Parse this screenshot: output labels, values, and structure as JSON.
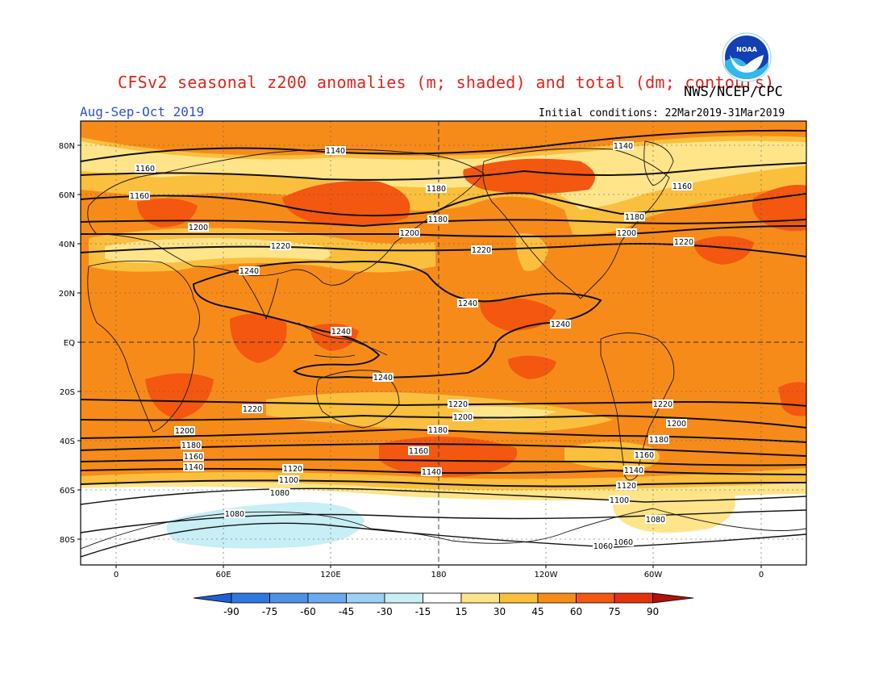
{
  "header": {
    "title": "CFSv2 seasonal z200 anomalies (m; shaded) and total (dm; contours)",
    "agency": "NWS/NCEP/CPC",
    "season": "Aug-Sep-Oct 2019",
    "initial_conditions": "Initial conditions: 22Mar2019-31Mar2019",
    "logo_text": "NOAA"
  },
  "map": {
    "lat_ticks": [
      "80N",
      "60N",
      "40N",
      "20N",
      "EQ",
      "20S",
      "40S",
      "60S",
      "80S"
    ],
    "lon_ticks": [
      "0",
      "60E",
      "120E",
      "180",
      "120W",
      "60W",
      "0"
    ],
    "contour_labels": [
      "1140",
      "1140",
      "1160",
      "1160",
      "1160",
      "1180",
      "1180",
      "1180",
      "1200",
      "1200",
      "1200",
      "1220",
      "1220",
      "1220",
      "1240",
      "1240",
      "1240",
      "1240",
      "1240",
      "1220",
      "1220",
      "1220",
      "1200",
      "1200",
      "1200",
      "1180",
      "1180",
      "1180",
      "1160",
      "1160",
      "1160",
      "1140",
      "1140",
      "1140",
      "1120",
      "1120",
      "1100",
      "1100",
      "1080",
      "1080",
      "1080",
      "1060",
      "1060"
    ]
  },
  "colorbar": {
    "labels": [
      "-90",
      "-75",
      "-60",
      "-45",
      "-30",
      "-15",
      "15",
      "30",
      "45",
      "60",
      "75",
      "90"
    ],
    "colors": [
      "#1f5fd6",
      "#2f78e0",
      "#4d92e8",
      "#6aaaee",
      "#9dd0f2",
      "#c8eef6",
      "#ffffff",
      "#ffe48a",
      "#fbbf3e",
      "#f78b1a",
      "#f35710",
      "#e4330c",
      "#b0120a"
    ]
  }
}
